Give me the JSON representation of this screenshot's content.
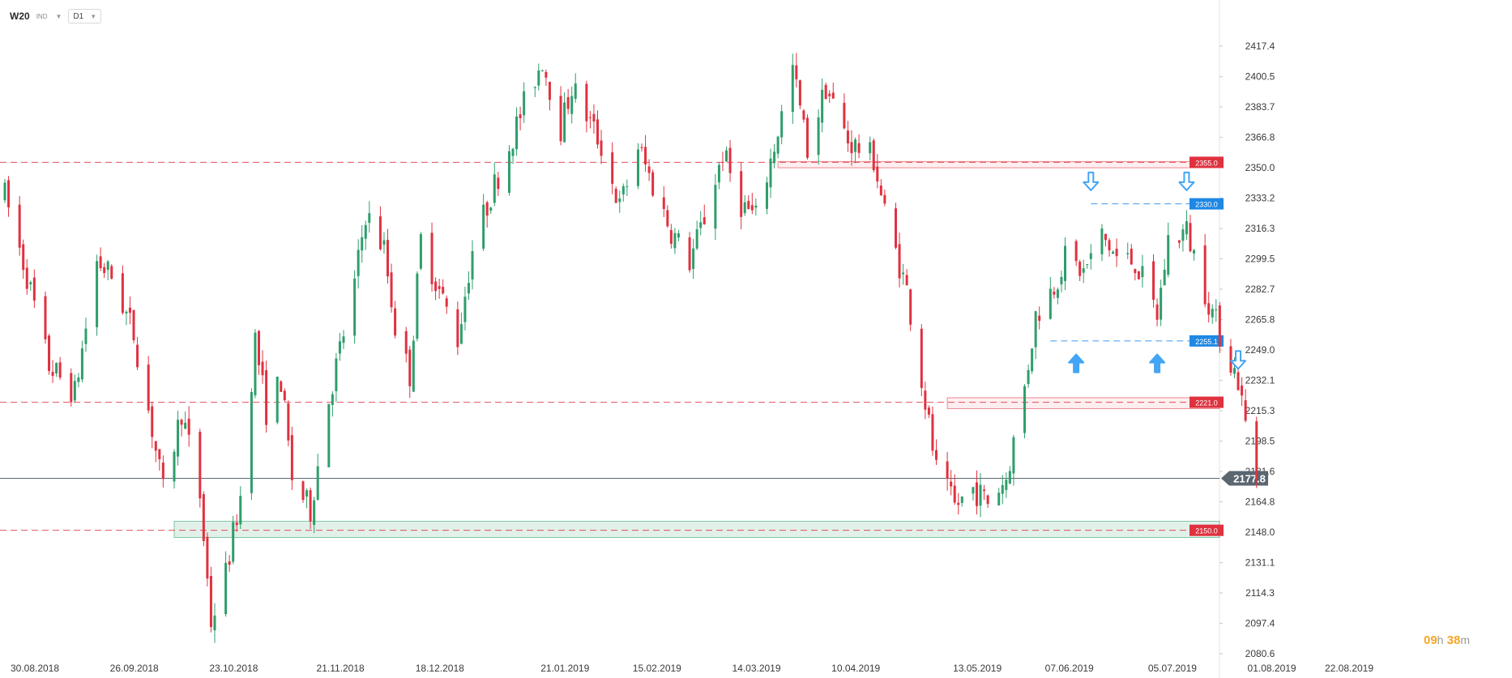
{
  "toolbar": {
    "symbol": "W20",
    "market": "IND",
    "timeframe": "D1"
  },
  "countdown": {
    "hours": "09",
    "hours_unit": "h",
    "minutes": "38",
    "minutes_unit": "m"
  },
  "colors": {
    "bull": "#2e9e6b",
    "bear": "#e0313f",
    "level": "#e0313f",
    "blue": "#1e88e5",
    "current": "#5a6670"
  },
  "chart_data": {
    "type": "candlestick",
    "title": "",
    "ylim": [
      2080.6,
      2434
    ],
    "y_ticks": [
      "2417.4",
      "2400.5",
      "2383.7",
      "2366.8",
      "2350.0",
      "2333.2",
      "2316.3",
      "2299.5",
      "2282.7",
      "2265.8",
      "2249.0",
      "2232.1",
      "2215.3",
      "2198.5",
      "2181.6",
      "2164.8",
      "2148.0",
      "2131.1",
      "2114.3",
      "2097.4",
      "2080.6"
    ],
    "x_labels": [
      "30.08.2018",
      "26.09.2018",
      "23.10.2018",
      "21.11.2018",
      "18.12.2018",
      "21.01.2019",
      "15.02.2019",
      "14.03.2019",
      "10.04.2019",
      "13.05.2019",
      "07.06.2019",
      "05.07.2019",
      "01.08.2019",
      "22.08.2019"
    ],
    "current_price": "2177.8",
    "levels": [
      {
        "label": "2355.0",
        "value": 2353,
        "color": "red",
        "dashed": true
      },
      {
        "label": "2221.0",
        "value": 2220,
        "color": "red",
        "dashed": true
      },
      {
        "label": "2150.0",
        "value": 2149,
        "color": "red",
        "dashed": true
      },
      {
        "label": "2330.0",
        "value": 2330,
        "color": "blue",
        "dashed": true,
        "from": "21.06.2019"
      },
      {
        "label": "2255.1",
        "value": 2254,
        "color": "blue",
        "dashed": true,
        "from": "10.06.2019"
      }
    ],
    "zones": [
      {
        "color": "red",
        "from_y": 2353.5,
        "to_y": 2350,
        "from": "28.03.2019"
      },
      {
        "color": "red",
        "from_y": 2222.5,
        "to_y": 2216.5,
        "from": "13.05.2019"
      },
      {
        "color": "green",
        "from_y": 2154,
        "to_y": 2145,
        "from": "15.10.2018"
      }
    ],
    "arrows": [
      {
        "direction": "down",
        "date": "21.06.2019",
        "price": 2342
      },
      {
        "direction": "down",
        "date": "17.07.2019",
        "price": 2342
      },
      {
        "direction": "down",
        "date": "31.07.2019",
        "price": 2243
      },
      {
        "direction": "up",
        "date": "17.06.2019",
        "price": 2242
      },
      {
        "direction": "up",
        "date": "09.07.2019",
        "price": 2242
      }
    ],
    "anchors": [
      {
        "date": "30.08.2018",
        "price": 2335
      },
      {
        "date": "05.09.2018",
        "price": 2290
      },
      {
        "date": "11.09.2018",
        "price": 2240
      },
      {
        "date": "18.09.2018",
        "price": 2225
      },
      {
        "date": "24.09.2018",
        "price": 2298
      },
      {
        "date": "28.09.2018",
        "price": 2290
      },
      {
        "date": "04.10.2018",
        "price": 2258
      },
      {
        "date": "09.10.2018",
        "price": 2205
      },
      {
        "date": "12.10.2018",
        "price": 2170
      },
      {
        "date": "17.10.2018",
        "price": 2215
      },
      {
        "date": "22.10.2018",
        "price": 2168
      },
      {
        "date": "25.10.2018",
        "price": 2098
      },
      {
        "date": "29.10.2018",
        "price": 2125
      },
      {
        "date": "02.11.2018",
        "price": 2168
      },
      {
        "date": "06.11.2018",
        "price": 2255
      },
      {
        "date": "09.11.2018",
        "price": 2215
      },
      {
        "date": "13.11.2018",
        "price": 2232
      },
      {
        "date": "16.11.2018",
        "price": 2178
      },
      {
        "date": "21.11.2018",
        "price": 2160
      },
      {
        "date": "26.11.2018",
        "price": 2222
      },
      {
        "date": "03.12.2018",
        "price": 2285
      },
      {
        "date": "06.12.2018",
        "price": 2325
      },
      {
        "date": "11.12.2018",
        "price": 2305
      },
      {
        "date": "14.12.2018",
        "price": 2262
      },
      {
        "date": "18.12.2018",
        "price": 2235
      },
      {
        "date": "21.12.2018",
        "price": 2310
      },
      {
        "date": "26.12.2018",
        "price": 2282
      },
      {
        "date": "31.12.2018",
        "price": 2255
      },
      {
        "date": "04.01.2019",
        "price": 2305
      },
      {
        "date": "09.01.2019",
        "price": 2335
      },
      {
        "date": "14.01.2019",
        "price": 2362
      },
      {
        "date": "18.01.2019",
        "price": 2385
      },
      {
        "date": "23.01.2019",
        "price": 2410
      },
      {
        "date": "28.01.2019",
        "price": 2372
      },
      {
        "date": "31.01.2019",
        "price": 2395
      },
      {
        "date": "05.02.2019",
        "price": 2375
      },
      {
        "date": "08.02.2019",
        "price": 2362
      },
      {
        "date": "13.02.2019",
        "price": 2328
      },
      {
        "date": "18.02.2019",
        "price": 2362
      },
      {
        "date": "22.02.2019",
        "price": 2340
      },
      {
        "date": "27.02.2019",
        "price": 2315
      },
      {
        "date": "04.03.2019",
        "price": 2298
      },
      {
        "date": "08.03.2019",
        "price": 2322
      },
      {
        "date": "13.03.2019",
        "price": 2358
      },
      {
        "date": "18.03.2019",
        "price": 2330
      },
      {
        "date": "22.03.2019",
        "price": 2322
      },
      {
        "date": "27.03.2019",
        "price": 2362
      },
      {
        "date": "01.04.2019",
        "price": 2405
      },
      {
        "date": "05.04.2019",
        "price": 2360
      },
      {
        "date": "10.04.2019",
        "price": 2395
      },
      {
        "date": "16.04.2019",
        "price": 2365
      },
      {
        "date": "23.04.2019",
        "price": 2355
      },
      {
        "date": "26.04.2019",
        "price": 2325
      },
      {
        "date": "02.05.2019",
        "price": 2282
      },
      {
        "date": "07.05.2019",
        "price": 2220
      },
      {
        "date": "10.05.2019",
        "price": 2182
      },
      {
        "date": "15.05.2019",
        "price": 2162
      },
      {
        "date": "20.05.2019",
        "price": 2172
      },
      {
        "date": "24.05.2019",
        "price": 2165
      },
      {
        "date": "29.05.2019",
        "price": 2178
      },
      {
        "date": "03.06.2019",
        "price": 2228
      },
      {
        "date": "06.06.2019",
        "price": 2268
      },
      {
        "date": "11.06.2019",
        "price": 2285
      },
      {
        "date": "14.06.2019",
        "price": 2300
      },
      {
        "date": "19.06.2019",
        "price": 2292
      },
      {
        "date": "24.06.2019",
        "price": 2312
      },
      {
        "date": "28.06.2019",
        "price": 2300
      },
      {
        "date": "03.07.2019",
        "price": 2298
      },
      {
        "date": "09.07.2019",
        "price": 2268
      },
      {
        "date": "12.07.2019",
        "price": 2310
      },
      {
        "date": "17.07.2019",
        "price": 2315
      },
      {
        "date": "22.07.2019",
        "price": 2282
      },
      {
        "date": "26.07.2019",
        "price": 2258
      },
      {
        "date": "31.07.2019",
        "price": 2232
      },
      {
        "date": "02.08.2019",
        "price": 2208
      },
      {
        "date": "05.08.2019",
        "price": 2177.8
      }
    ]
  }
}
